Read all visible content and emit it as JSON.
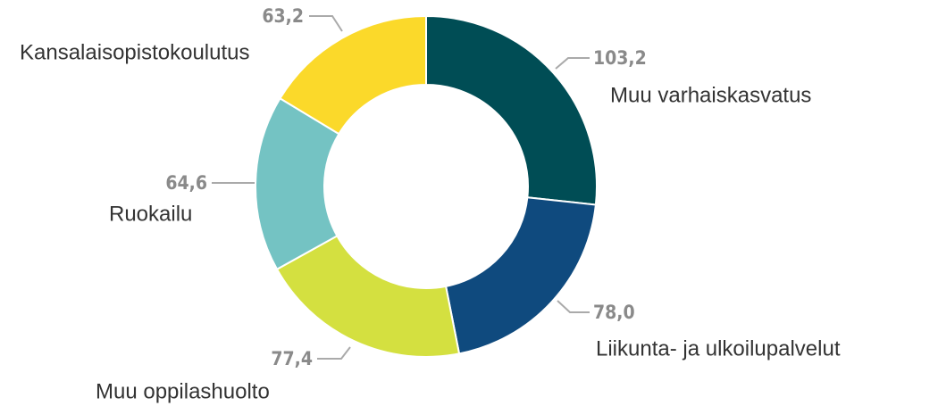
{
  "chart_data": {
    "type": "donut",
    "categories": [
      "Muu varhaiskasvatus",
      "Liikunta- ja ulkoilupalvelut",
      "Muu oppilashuolto",
      "Ruokailu",
      "Kansalaisopistokoulutus"
    ],
    "values": [
      103.2,
      78.0,
      77.4,
      64.6,
      63.2
    ],
    "value_labels": [
      "103,2",
      "78,0",
      "77,4",
      "64,6",
      "63,2"
    ],
    "colors": [
      "#004d55",
      "#0f4a7e",
      "#d4e040",
      "#74c3c3",
      "#fbd92a"
    ]
  }
}
